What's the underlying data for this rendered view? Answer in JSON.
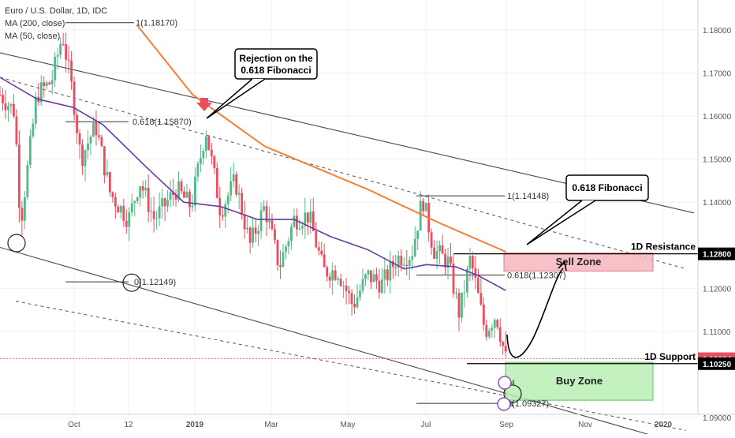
{
  "legend": {
    "symbol": "Euro / U.S. Dollar, 1D, IDC",
    "ma200": "MA (200, close)",
    "ma50": "MA (50, close)"
  },
  "colors": {
    "bull": "#53b987",
    "bear": "#eb4d5c",
    "ma200": "#f57f33",
    "ma50": "#6a3ba0",
    "channel": "#555555",
    "support_tag": "#eb4d5c",
    "price_tag": "#000000",
    "sell_zone": "#f5b8bf",
    "buy_zone": "#b9efb4"
  },
  "chart_data": {
    "type": "candlestick",
    "title": "Euro / U.S. Dollar, 1D, IDC",
    "x_tick_labels": [
      "Oct",
      "12",
      "2019",
      "Mar",
      "May",
      "Jul",
      "Sep",
      "Nov",
      "2020"
    ],
    "y_tick_labels": [
      "1.18000",
      "1.17000",
      "1.16000",
      "1.15000",
      "1.14000",
      "1.12000",
      "1.11000",
      "1.09000"
    ],
    "ylim": [
      1.0855,
      1.1895
    ],
    "grid": true,
    "series": [
      {
        "name": "MA (200, close)",
        "values": [
          [
            0.187,
            1.181
          ],
          [
            0.262,
            1.165
          ],
          [
            0.36,
            1.153
          ],
          [
            0.5,
            1.143
          ],
          [
            0.6,
            1.135
          ],
          [
            0.688,
            1.1285
          ]
        ]
      },
      {
        "name": "MA (50, close)",
        "values": [
          [
            0.0,
            1.169
          ],
          [
            0.05,
            1.164
          ],
          [
            0.1,
            1.162
          ],
          [
            0.14,
            1.158
          ],
          [
            0.2,
            1.148
          ],
          [
            0.25,
            1.14
          ],
          [
            0.3,
            1.139
          ],
          [
            0.35,
            1.136
          ],
          [
            0.4,
            1.136
          ],
          [
            0.45,
            1.132
          ],
          [
            0.5,
            1.129
          ],
          [
            0.55,
            1.1245
          ],
          [
            0.58,
            1.1255
          ],
          [
            0.62,
            1.125
          ],
          [
            0.65,
            1.123
          ],
          [
            0.688,
            1.1195
          ]
        ]
      }
    ],
    "price_path": [
      [
        0.0,
        1.165
      ],
      [
        0.02,
        1.161
      ],
      [
        0.028,
        1.135
      ],
      [
        0.05,
        1.165
      ],
      [
        0.07,
        1.168
      ],
      [
        0.085,
        1.179
      ],
      [
        0.1,
        1.164
      ],
      [
        0.11,
        1.15
      ],
      [
        0.13,
        1.158
      ],
      [
        0.15,
        1.142
      ],
      [
        0.175,
        1.136
      ],
      [
        0.19,
        1.145
      ],
      [
        0.21,
        1.136
      ],
      [
        0.24,
        1.143
      ],
      [
        0.26,
        1.139
      ],
      [
        0.28,
        1.157
      ],
      [
        0.3,
        1.138
      ],
      [
        0.32,
        1.145
      ],
      [
        0.34,
        1.13
      ],
      [
        0.36,
        1.139
      ],
      [
        0.38,
        1.125
      ],
      [
        0.4,
        1.136
      ],
      [
        0.42,
        1.137
      ],
      [
        0.44,
        1.124
      ],
      [
        0.46,
        1.124
      ],
      [
        0.48,
        1.116
      ],
      [
        0.5,
        1.123
      ],
      [
        0.52,
        1.121
      ],
      [
        0.54,
        1.127
      ],
      [
        0.56,
        1.128
      ],
      [
        0.575,
        1.141
      ],
      [
        0.59,
        1.129
      ],
      [
        0.61,
        1.126
      ],
      [
        0.625,
        1.114
      ],
      [
        0.64,
        1.127
      ],
      [
        0.66,
        1.11
      ],
      [
        0.675,
        1.114
      ],
      [
        0.688,
        1.1036
      ]
    ],
    "fibonacci_levels": [
      {
        "label": "1(1.18170)",
        "value": 1.1817
      },
      {
        "label": "0.618(1.15870)",
        "value": 1.1587
      },
      {
        "label": "0(1.12149)",
        "value": 1.12149
      },
      {
        "label": "1(1.14148)",
        "value": 1.14148
      },
      {
        "label": "0.618(1.12307)",
        "value": 1.12307
      },
      {
        "label": "0(1.09327)",
        "value": 1.09327
      }
    ],
    "price_tags": [
      {
        "label": "1.12800",
        "value": 1.128
      },
      {
        "label": "1.10364",
        "value": 1.10364
      },
      {
        "label": "1.10250",
        "value": 1.1025
      }
    ],
    "levels": [
      {
        "label": "1D Resistance",
        "value": 1.128
      },
      {
        "label": "1D Support",
        "value": 1.1025
      }
    ],
    "zones": [
      {
        "label": "Sell Zone",
        "top": 1.1282,
        "bottom": 1.124
      },
      {
        "label": "Buy Zone",
        "top": 1.1028,
        "bottom": 1.094
      }
    ],
    "callouts": [
      {
        "line1": "Rejection on the",
        "line2": "0.618 Fibonacci"
      },
      {
        "line1": "0.618 Fibonacci"
      }
    ],
    "markers": [
      "4",
      "1"
    ]
  }
}
